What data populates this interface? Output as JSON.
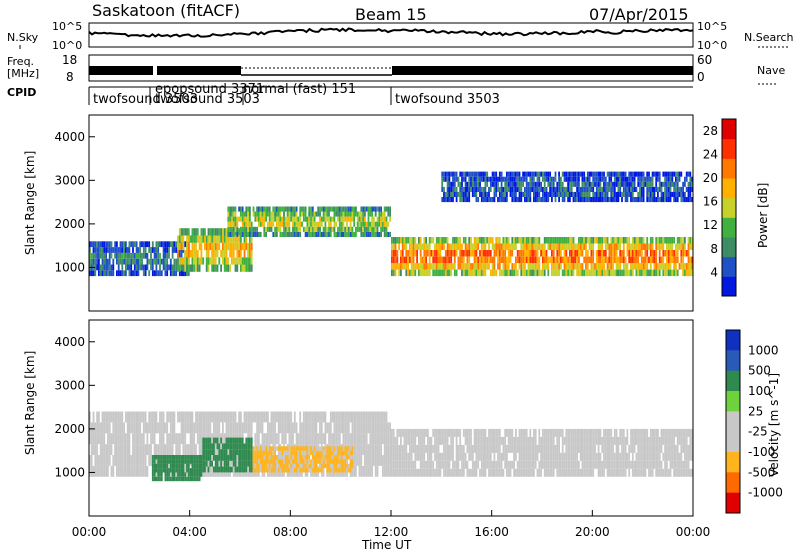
{
  "header": {
    "station": "Saskatoon (fitACF)",
    "beam": "Beam 15",
    "date": "07/Apr/2015"
  },
  "side_labels": {
    "nsky": "N.Sky",
    "freq_line1": "Freq.",
    "freq_line2": "[MHz]",
    "cpid": "CPID",
    "nsearch": "N.Search",
    "nave": "Nave"
  },
  "noise_axis": {
    "left_top": "10^5",
    "left_bottom": "10^0",
    "right_top": "10^5",
    "right_bottom": "10^0"
  },
  "freq_axis": {
    "left_ticks": [
      "18",
      "8"
    ],
    "right_ticks": [
      "60",
      "0"
    ]
  },
  "cpid_modes": [
    {
      "label": "twofsound 3503",
      "start_hr": 0.0
    },
    {
      "label": "twofsound 3503",
      "start_hr": 2.5,
      "row": "overlap"
    },
    {
      "label": "epopsound 3371",
      "start_hr": 2.6
    },
    {
      "label": "normal (fast) 151",
      "start_hr": 5.6
    },
    {
      "label": "twofsound 3503",
      "start_hr": 12.0
    }
  ],
  "colors": {
    "power_scale": [
      "#0018e0",
      "#2050c8",
      "#3c8c64",
      "#40b040",
      "#c8d02a",
      "#ffb000",
      "#ff7800",
      "#ff3000",
      "#e00000"
    ],
    "velocity_scale": [
      "#1030c0",
      "#2a5ab8",
      "#2f8a50",
      "#6ed23c",
      "#c8c8c8",
      "#c8c8c8",
      "#ffb41e",
      "#ff6a00",
      "#e00000"
    ]
  },
  "chart_data": [
    {
      "type": "heatmap",
      "panel": "power",
      "xlabel": "",
      "ylabel": "Slant Range [km]",
      "xlim": [
        0,
        24
      ],
      "ylim": [
        0,
        4500
      ],
      "y_ticks": [
        "1000",
        "2000",
        "3000",
        "4000"
      ],
      "colorbar": {
        "label": "Power [dB]",
        "range": [
          0,
          30
        ],
        "ticks": [
          "4",
          "8",
          "12",
          "16",
          "20",
          "24",
          "28"
        ]
      },
      "echo_bands": [
        {
          "t0": 0.0,
          "t1": 4.0,
          "r0": 800,
          "r1": 1600,
          "level": 8
        },
        {
          "t0": 3.5,
          "t1": 6.5,
          "r0": 900,
          "r1": 1900,
          "level": 20
        },
        {
          "t0": 5.5,
          "t1": 12.0,
          "r0": 1700,
          "r1": 2400,
          "level": 16
        },
        {
          "t0": 12.0,
          "t1": 24.0,
          "r0": 800,
          "r1": 1700,
          "level": 24
        },
        {
          "t0": 14.0,
          "t1": 24.0,
          "r0": 2500,
          "r1": 3200,
          "level": 6
        }
      ]
    },
    {
      "type": "heatmap",
      "panel": "velocity",
      "xlabel": "Time UT",
      "ylabel": "Slant Range [km]",
      "xlim": [
        0,
        24
      ],
      "ylim": [
        0,
        4500
      ],
      "x_ticks": [
        "00:00",
        "04:00",
        "08:00",
        "12:00",
        "16:00",
        "20:00",
        "00:00"
      ],
      "y_ticks": [
        "1000",
        "2000",
        "3000",
        "4000"
      ],
      "colorbar": {
        "label": "Velocity [m s^-1]",
        "ticks": [
          "1000",
          "500",
          "100",
          "25",
          "-25",
          "-100",
          "-500",
          "-1000"
        ]
      },
      "echo_bands": [
        {
          "t0": 0.0,
          "t1": 12.0,
          "r0": 900,
          "r1": 2400,
          "velocity": 0
        },
        {
          "t0": 2.5,
          "t1": 4.5,
          "r0": 800,
          "r1": 1400,
          "velocity": 300
        },
        {
          "t0": 4.5,
          "t1": 6.5,
          "r0": 1000,
          "r1": 1800,
          "velocity": 150
        },
        {
          "t0": 6.5,
          "t1": 10.5,
          "r0": 1000,
          "r1": 1600,
          "velocity": -120
        },
        {
          "t0": 12.0,
          "t1": 24.0,
          "r0": 900,
          "r1": 2000,
          "velocity": 0
        }
      ]
    }
  ]
}
